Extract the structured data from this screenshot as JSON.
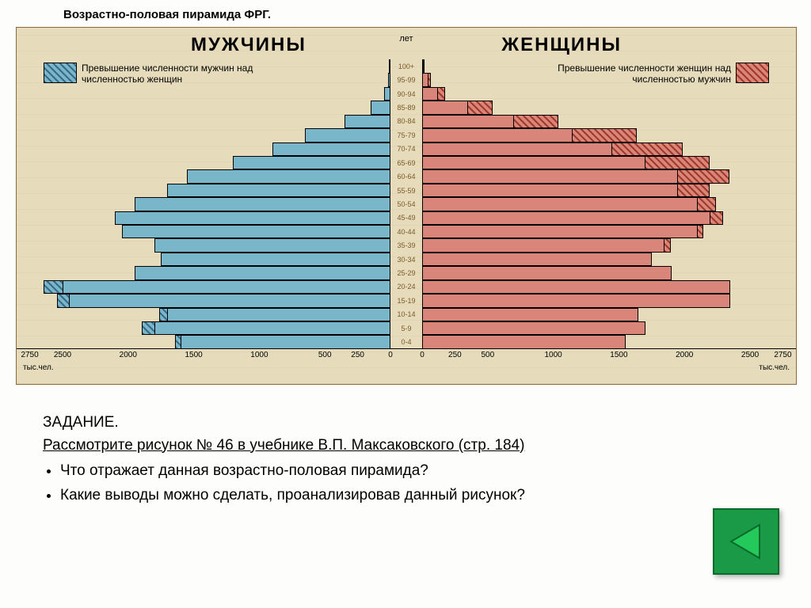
{
  "title": "Возрастно-половая пирамида ФРГ.",
  "chart": {
    "header_left": "МУЖЧИНЫ",
    "header_right": "ЖЕНЩИНЫ",
    "center_top": "лет",
    "legend_left": "Превышение численности мужчин над численностью женщин",
    "legend_right": "Превышение численности женщин над численностью мужчин",
    "axis_unit": "тыс.чел.",
    "age_labels": [
      "100+",
      "95-99",
      "90-94",
      "85-89",
      "80-84",
      "75-79",
      "70-74",
      "65-69",
      "60-64",
      "55-59",
      "50-54",
      "45-49",
      "40-44",
      "35-39",
      "30-34",
      "25-29",
      "20-24",
      "15-19",
      "10-14",
      "5-9",
      "0-4"
    ],
    "male": [
      5,
      20,
      50,
      150,
      350,
      650,
      900,
      1200,
      1550,
      1700,
      1950,
      2100,
      2050,
      1800,
      1750,
      1950,
      2500,
      2450,
      1700,
      1800,
      1600
    ],
    "male_excess": [
      0,
      0,
      0,
      0,
      0,
      0,
      0,
      0,
      0,
      0,
      0,
      0,
      0,
      0,
      0,
      0,
      150,
      100,
      70,
      100,
      50
    ],
    "female": [
      15,
      50,
      120,
      350,
      700,
      1150,
      1450,
      1700,
      1950,
      1950,
      2100,
      2200,
      2100,
      1850,
      1750,
      1900,
      2350,
      2350,
      1650,
      1700,
      1550
    ],
    "female_excess": [
      10,
      30,
      70,
      200,
      350,
      500,
      550,
      500,
      400,
      250,
      150,
      100,
      50,
      50,
      0,
      0,
      0,
      0,
      0,
      0,
      0
    ],
    "ticks": [
      2750,
      2500,
      2000,
      1500,
      1000,
      500,
      250,
      0
    ],
    "max": 2850,
    "colors": {
      "male_fill": "#7ab6c9",
      "male_hatch": "#3a6a8a",
      "female_fill": "#d9857a",
      "female_hatch": "#a03a2a",
      "bg": "#e6dcbb",
      "border": "#8a6a3a"
    }
  },
  "task": {
    "title": "ЗАДАНИЕ.",
    "line1": "Рассмотрите рисунок № 46 в учебнике В.П. Максаковского (стр. 184)",
    "q1": "Что отражает данная возрастно-половая пирамида?",
    "q2": "Какие выводы можно сделать, проанализировав данный рисунок?"
  },
  "nav": {
    "back": "back"
  }
}
